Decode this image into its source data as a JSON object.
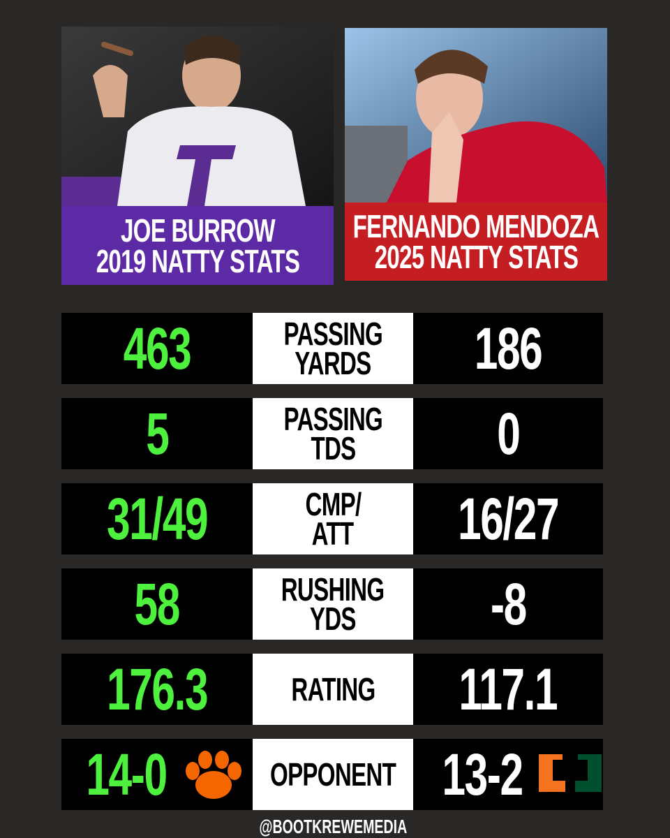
{
  "players": [
    {
      "caption": [
        "JOE BURROW",
        "2019 NATTY STATS"
      ]
    },
    {
      "caption": [
        "FERNANDO MENDOZA",
        "2025 NATTY STATS"
      ]
    }
  ],
  "stats": [
    {
      "left": "463",
      "label": [
        "PASSING",
        "YARDS"
      ],
      "right": "186"
    },
    {
      "left": "5",
      "label": [
        "PASSING",
        "TDS"
      ],
      "right": "0"
    },
    {
      "left": "31/49",
      "label": [
        "CMP/",
        "ATT"
      ],
      "right": "16/27"
    },
    {
      "left": "58",
      "label": [
        "RUSHING",
        "YDS"
      ],
      "right": "-8"
    },
    {
      "left": "176.3",
      "label": [
        "RATING"
      ],
      "right": "117.1"
    },
    {
      "left": "14-0",
      "label": [
        "OPPONENT"
      ],
      "right": "13-2"
    }
  ],
  "footer": "@BOOTKREWEMEDIA"
}
